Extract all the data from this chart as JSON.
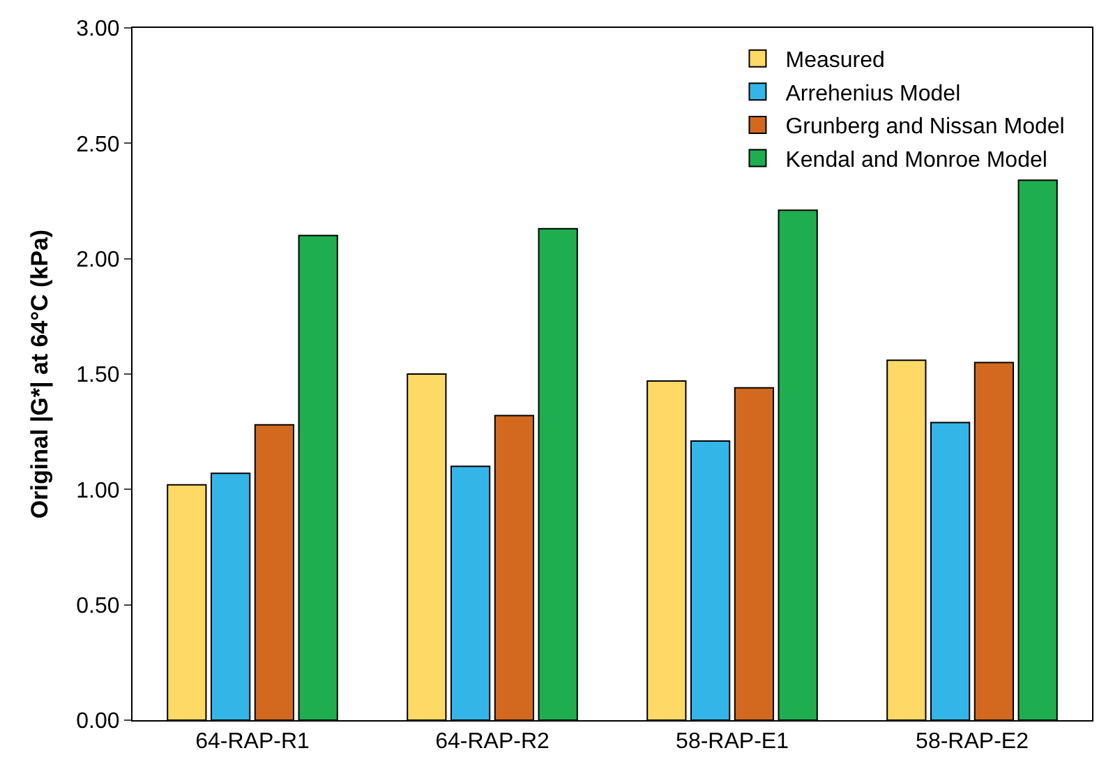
{
  "chart_data": {
    "type": "bar",
    "ylabel": "Original |G*| at 64°C (kPa)",
    "categories": [
      "64-RAP-R1",
      "64-RAP-R2",
      "58-RAP-E1",
      "58-RAP-E2"
    ],
    "series": [
      {
        "name": "Measured",
        "color": "#ffd966",
        "values": [
          1.02,
          1.5,
          1.47,
          1.56
        ]
      },
      {
        "name": "Arrehenius Model",
        "color": "#33b5e8",
        "values": [
          1.07,
          1.1,
          1.21,
          1.29
        ]
      },
      {
        "name": "Grunberg and Nissan Model",
        "color": "#d2691e",
        "values": [
          1.28,
          1.32,
          1.44,
          1.55
        ]
      },
      {
        "name": "Kendal and Monroe Model",
        "color": "#1fae4f",
        "values": [
          2.1,
          2.13,
          2.21,
          2.34
        ]
      }
    ],
    "ylim": [
      0,
      3
    ],
    "yticks": [
      {
        "value": 0,
        "label": "0.00"
      },
      {
        "value": 0.5,
        "label": "0.50"
      },
      {
        "value": 1,
        "label": "1.00"
      },
      {
        "value": 1.5,
        "label": "1.50"
      },
      {
        "value": 2,
        "label": "2.00"
      },
      {
        "value": 2.5,
        "label": "2.50"
      },
      {
        "value": 3,
        "label": "3.00"
      }
    ],
    "legend": "top right"
  }
}
